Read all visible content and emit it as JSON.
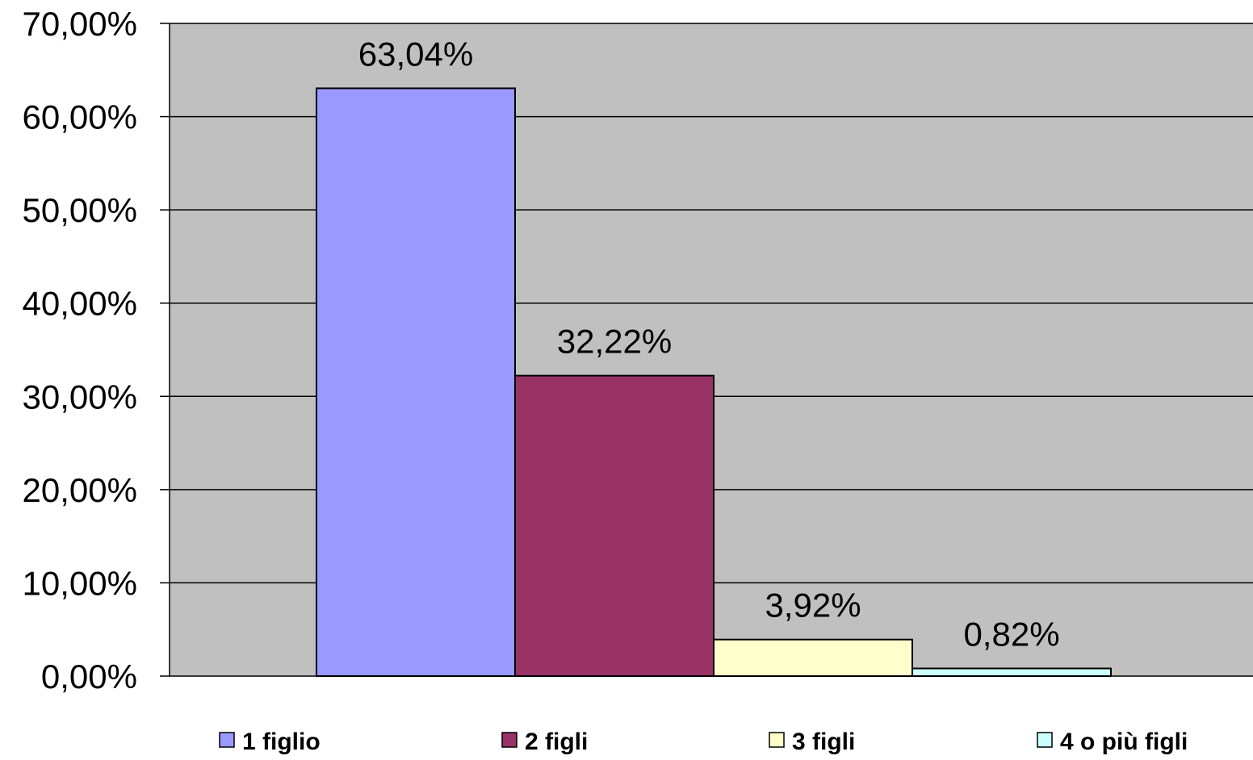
{
  "chart_data": {
    "type": "bar",
    "title": "",
    "xlabel": "",
    "ylabel": "",
    "ylim": [
      0,
      70
    ],
    "y_ticks": [
      0,
      10,
      20,
      30,
      40,
      50,
      60,
      70
    ],
    "y_tick_labels": [
      "0,00%",
      "10,00%",
      "20,00%",
      "30,00%",
      "40,00%",
      "50,00%",
      "60,00%",
      "70,00%"
    ],
    "grid": "horizontal",
    "legend_position": "bottom",
    "plot_background": "#C0C0C0",
    "series": [
      {
        "name": "1 figlio",
        "value": 63.04,
        "label": "63,04%",
        "color": "#9999FF"
      },
      {
        "name": "2 figli",
        "value": 32.22,
        "label": "32,22%",
        "color": "#993366"
      },
      {
        "name": "3 figli",
        "value": 3.92,
        "label": "3,92%",
        "color": "#FFFFCC"
      },
      {
        "name": "4 o più figli",
        "value": 0.82,
        "label": "0,82%",
        "color": "#CCFFFF"
      }
    ]
  }
}
